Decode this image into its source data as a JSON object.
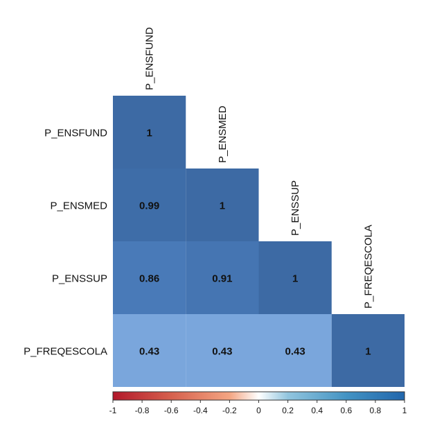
{
  "chart_data": {
    "type": "heatmap",
    "subtype": "correlation-matrix-lower-triangle",
    "variables": [
      "P_ENSFUND",
      "P_ENSMED",
      "P_ENSSUP",
      "P_FREQESCOLA"
    ],
    "matrix": [
      [
        1,
        null,
        null,
        null
      ],
      [
        0.99,
        1,
        null,
        null
      ],
      [
        0.86,
        0.91,
        1,
        null
      ],
      [
        0.43,
        0.43,
        0.43,
        1
      ]
    ],
    "value_labels": [
      [
        "1",
        "",
        "",
        ""
      ],
      [
        "0.99",
        "1",
        "",
        ""
      ],
      [
        "0.86",
        "0.91",
        "1",
        ""
      ],
      [
        "0.43",
        "0.43",
        "0.43",
        "1"
      ]
    ],
    "colorbar": {
      "range": [
        -1,
        1
      ],
      "ticks": [
        "-1",
        "-0.8",
        "-0.6",
        "-0.4",
        "-0.2",
        "0",
        "0.2",
        "0.4",
        "0.6",
        "0.8",
        "1"
      ],
      "colors": {
        "low": "#67001F",
        "mid_low": "#D6604D",
        "mid": "#FFFFFF",
        "mid_high": "#4393C3",
        "high": "#053061"
      }
    },
    "grid": false
  }
}
